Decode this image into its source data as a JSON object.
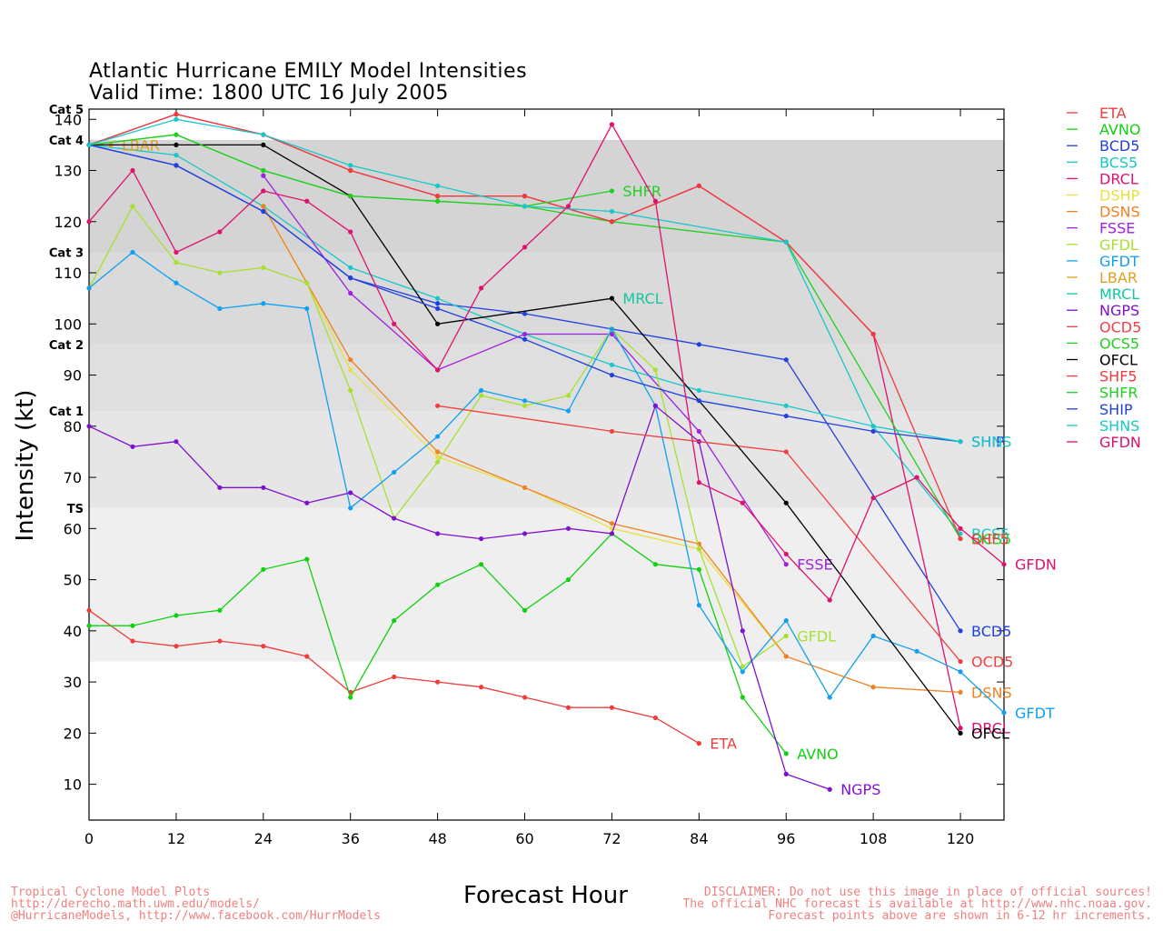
{
  "header": {
    "title": "Atlantic Hurricane EMILY Model Intensities",
    "subtitle": "Valid Time: 1800 UTC 16 July 2005"
  },
  "footer": {
    "left": [
      "Tropical Cyclone Model Plots",
      "http://derecho.math.uwm.edu/models/",
      "@HurricaneModels, http://www.facebook.com/HurrModels"
    ],
    "right": [
      "DISCLAIMER: Do not use this image in place of official sources!",
      "The official NHC forecast is available at http://www.nhc.noaa.gov.",
      "Forecast points above are shown in 6-12 hr increments."
    ]
  },
  "chart_data": {
    "type": "line",
    "xlabel": "Forecast Hour",
    "ylabel": "Intensity (kt)",
    "xlim": [
      0,
      126
    ],
    "ylim": [
      3,
      142
    ],
    "xticks": [
      0,
      12,
      24,
      36,
      48,
      60,
      72,
      84,
      96,
      108,
      120
    ],
    "yticks": [
      10,
      20,
      30,
      40,
      50,
      60,
      70,
      80,
      90,
      100,
      110,
      120,
      130,
      140
    ],
    "categories_bands": [
      {
        "label": "TS",
        "from": 34,
        "to": 64,
        "color": "#efefef"
      },
      {
        "label": "Cat 1",
        "from": 64,
        "to": 83,
        "color": "#e6e6e6"
      },
      {
        "label": "Cat 2",
        "from": 83,
        "to": 96,
        "color": "#dfdfdf"
      },
      {
        "label": "Cat 3",
        "from": 96,
        "to": 114,
        "color": "#dadada"
      },
      {
        "label": "Cat 4",
        "from": 114,
        "to": 136,
        "color": "#d4d4d4"
      },
      {
        "label": "Cat 5",
        "from": 136,
        "to": 142,
        "color": "#ffffff"
      }
    ],
    "legend_position": "right",
    "series": [
      {
        "name": "ETA",
        "color": "#f03c3c",
        "end_label": "ETA",
        "points": [
          [
            0,
            44
          ],
          [
            6,
            38
          ],
          [
            12,
            37
          ],
          [
            18,
            38
          ],
          [
            24,
            37
          ],
          [
            30,
            35
          ],
          [
            36,
            28
          ],
          [
            42,
            31
          ],
          [
            48,
            30
          ],
          [
            54,
            29
          ],
          [
            60,
            27
          ],
          [
            66,
            25
          ],
          [
            72,
            25
          ],
          [
            78,
            23
          ],
          [
            84,
            18
          ]
        ]
      },
      {
        "name": "AVNO",
        "color": "#10d010",
        "end_label": "AVNO",
        "points": [
          [
            0,
            41
          ],
          [
            6,
            41
          ],
          [
            12,
            43
          ],
          [
            18,
            44
          ],
          [
            24,
            52
          ],
          [
            30,
            54
          ],
          [
            36,
            27
          ],
          [
            42,
            42
          ],
          [
            48,
            49
          ],
          [
            54,
            53
          ],
          [
            60,
            44
          ],
          [
            66,
            50
          ],
          [
            72,
            59
          ],
          [
            78,
            53
          ],
          [
            84,
            52
          ],
          [
            90,
            27
          ],
          [
            96,
            16
          ]
        ]
      },
      {
        "name": "BCD5",
        "color": "#2040e0",
        "end_label": "BCD5",
        "points": [
          [
            0,
            135
          ],
          [
            12,
            131
          ],
          [
            24,
            122
          ],
          [
            36,
            109
          ],
          [
            48,
            104
          ],
          [
            60,
            102
          ],
          [
            72,
            99
          ],
          [
            84,
            96
          ],
          [
            96,
            93
          ],
          [
            120,
            40
          ]
        ]
      },
      {
        "name": "BCS5",
        "color": "#18c8c8",
        "end_label": "BCS5",
        "points": [
          [
            0,
            135
          ],
          [
            12,
            133
          ],
          [
            24,
            123
          ],
          [
            36,
            111
          ],
          [
            48,
            105
          ],
          [
            60,
            98
          ],
          [
            72,
            92
          ],
          [
            84,
            87
          ],
          [
            96,
            84
          ],
          [
            108,
            80
          ],
          [
            120,
            59
          ]
        ]
      },
      {
        "name": "DRCL",
        "color": "#e0106e",
        "end_label": "DRCL",
        "points": [
          [
            0,
            135
          ],
          [
            12,
            141
          ],
          [
            24,
            137
          ],
          [
            36,
            130
          ],
          [
            48,
            125
          ],
          [
            60,
            125
          ],
          [
            72,
            120
          ],
          [
            84,
            127
          ],
          [
            96,
            116
          ],
          [
            108,
            98
          ],
          [
            120,
            21
          ]
        ]
      },
      {
        "name": "DSHP",
        "color": "#e8e040",
        "end_label": "",
        "points": [
          [
            24,
            123
          ],
          [
            30,
            108
          ],
          [
            36,
            91
          ],
          [
            48,
            74
          ],
          [
            60,
            68
          ],
          [
            72,
            60
          ],
          [
            84,
            56
          ],
          [
            96,
            35
          ]
        ]
      },
      {
        "name": "DSNS",
        "color": "#f08020",
        "end_label": "DSNS",
        "points": [
          [
            24,
            123
          ],
          [
            30,
            108
          ],
          [
            36,
            93
          ],
          [
            48,
            75
          ],
          [
            60,
            68
          ],
          [
            72,
            61
          ],
          [
            84,
            57
          ],
          [
            96,
            35
          ],
          [
            108,
            29
          ],
          [
            120,
            28
          ]
        ]
      },
      {
        "name": "FSSE",
        "color": "#a020e0",
        "end_label": "FSSE",
        "points": [
          [
            24,
            129
          ],
          [
            36,
            106
          ],
          [
            48,
            91
          ],
          [
            60,
            98
          ],
          [
            72,
            98
          ],
          [
            84,
            79
          ],
          [
            96,
            53
          ]
        ]
      },
      {
        "name": "GFDL",
        "color": "#a8e030",
        "end_label": "GFDL",
        "points": [
          [
            0,
            107
          ],
          [
            6,
            123
          ],
          [
            12,
            112
          ],
          [
            18,
            110
          ],
          [
            24,
            111
          ],
          [
            30,
            108
          ],
          [
            36,
            87
          ],
          [
            42,
            62
          ],
          [
            48,
            73
          ],
          [
            54,
            86
          ],
          [
            60,
            84
          ],
          [
            66,
            86
          ],
          [
            72,
            99
          ],
          [
            78,
            91
          ],
          [
            84,
            56
          ],
          [
            90,
            33
          ],
          [
            96,
            39
          ]
        ]
      },
      {
        "name": "GFDT",
        "color": "#10a0f0",
        "end_label": "GFDT",
        "points": [
          [
            0,
            107
          ],
          [
            6,
            114
          ],
          [
            12,
            108
          ],
          [
            18,
            103
          ],
          [
            24,
            104
          ],
          [
            30,
            103
          ],
          [
            36,
            64
          ],
          [
            42,
            71
          ],
          [
            48,
            78
          ],
          [
            54,
            87
          ],
          [
            60,
            85
          ],
          [
            66,
            83
          ],
          [
            72,
            99
          ],
          [
            78,
            84
          ],
          [
            84,
            45
          ],
          [
            90,
            32
          ],
          [
            96,
            42
          ],
          [
            102,
            27
          ],
          [
            108,
            39
          ],
          [
            114,
            36
          ],
          [
            120,
            32
          ],
          [
            126,
            24
          ]
        ]
      },
      {
        "name": "LBAR",
        "color": "#e0a020",
        "end_label": "LBAR",
        "points": [
          [
            0,
            135
          ],
          [
            3,
            135
          ]
        ]
      },
      {
        "name": "MRCL",
        "color": "#10c8a0",
        "end_label": "MRCL",
        "points": [
          [
            72,
            105
          ]
        ]
      },
      {
        "name": "NGPS",
        "color": "#8010d0",
        "end_label": "NGPS",
        "points": [
          [
            0,
            80
          ],
          [
            6,
            76
          ],
          [
            12,
            77
          ],
          [
            18,
            68
          ],
          [
            24,
            68
          ],
          [
            30,
            65
          ],
          [
            36,
            67
          ],
          [
            42,
            62
          ],
          [
            48,
            59
          ],
          [
            54,
            58
          ],
          [
            60,
            59
          ],
          [
            66,
            60
          ],
          [
            72,
            59
          ],
          [
            78,
            84
          ],
          [
            84,
            77
          ],
          [
            90,
            40
          ],
          [
            96,
            12
          ],
          [
            102,
            9
          ]
        ]
      },
      {
        "name": "OCD5",
        "color": "#f04040",
        "end_label": "OCD5",
        "points": [
          [
            48,
            84
          ],
          [
            72,
            79
          ],
          [
            96,
            75
          ],
          [
            120,
            34
          ]
        ]
      },
      {
        "name": "OCS5",
        "color": "#20d020",
        "end_label": "OCS5",
        "points": [
          [
            0,
            135
          ],
          [
            12,
            137
          ],
          [
            24,
            130
          ],
          [
            36,
            125
          ],
          [
            48,
            124
          ],
          [
            60,
            123
          ],
          [
            72,
            120
          ],
          [
            96,
            116
          ],
          [
            120,
            58
          ]
        ]
      },
      {
        "name": "OFCL",
        "color": "#000000",
        "end_label": "OFCL",
        "points": [
          [
            0,
            135
          ],
          [
            12,
            135
          ],
          [
            24,
            135
          ],
          [
            36,
            125
          ],
          [
            48,
            100
          ],
          [
            72,
            105
          ],
          [
            96,
            65
          ],
          [
            120,
            20
          ]
        ]
      },
      {
        "name": "SHF5",
        "color": "#f03c3c",
        "end_label": "SHF5",
        "points": [
          [
            0,
            135
          ],
          [
            12,
            141
          ],
          [
            24,
            137
          ],
          [
            36,
            130
          ],
          [
            48,
            125
          ],
          [
            60,
            125
          ],
          [
            72,
            120
          ],
          [
            84,
            127
          ],
          [
            96,
            116
          ],
          [
            108,
            98
          ],
          [
            120,
            58
          ]
        ]
      },
      {
        "name": "SHFR",
        "color": "#20d020",
        "end_label": "SHFR",
        "points": [
          [
            0,
            135
          ],
          [
            12,
            137
          ],
          [
            24,
            130
          ],
          [
            36,
            125
          ],
          [
            48,
            124
          ],
          [
            60,
            123
          ],
          [
            72,
            126
          ]
        ]
      },
      {
        "name": "SHIP",
        "color": "#2040e0",
        "end_label": "SHIP",
        "points": [
          [
            0,
            135
          ],
          [
            12,
            131
          ],
          [
            24,
            122
          ],
          [
            36,
            109
          ],
          [
            48,
            103
          ],
          [
            60,
            97
          ],
          [
            72,
            90
          ],
          [
            84,
            85
          ],
          [
            96,
            82
          ],
          [
            108,
            79
          ],
          [
            120,
            77
          ]
        ]
      },
      {
        "name": "SHNS",
        "color": "#18c8c8",
        "end_label": "SHNS",
        "points": [
          [
            0,
            135
          ],
          [
            12,
            140
          ],
          [
            24,
            137
          ],
          [
            36,
            131
          ],
          [
            48,
            127
          ],
          [
            60,
            123
          ],
          [
            72,
            122
          ],
          [
            96,
            116
          ],
          [
            108,
            80
          ],
          [
            120,
            77
          ]
        ]
      },
      {
        "name": "GFDN",
        "color": "#e0106e",
        "end_label": "GFDN",
        "points": [
          [
            0,
            120
          ],
          [
            6,
            130
          ],
          [
            12,
            114
          ],
          [
            18,
            118
          ],
          [
            24,
            126
          ],
          [
            30,
            124
          ],
          [
            36,
            118
          ],
          [
            42,
            100
          ],
          [
            48,
            91
          ],
          [
            54,
            107
          ],
          [
            60,
            115
          ],
          [
            66,
            123
          ],
          [
            72,
            139
          ],
          [
            78,
            124
          ],
          [
            84,
            69
          ],
          [
            90,
            65
          ],
          [
            96,
            55
          ],
          [
            102,
            46
          ],
          [
            108,
            66
          ],
          [
            114,
            70
          ],
          [
            120,
            60
          ],
          [
            126,
            53
          ]
        ]
      }
    ]
  }
}
